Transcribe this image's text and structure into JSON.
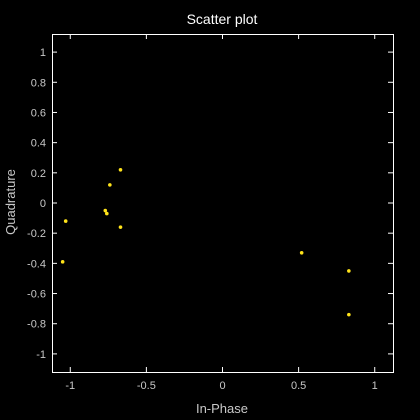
{
  "chart_data": {
    "type": "scatter",
    "title": "Scatter plot",
    "xlabel": "In-Phase",
    "ylabel": "Quadrature",
    "xlim": [
      -1.12,
      1.12
    ],
    "ylim": [
      -1.12,
      1.12
    ],
    "x_ticks": [
      -1,
      -0.5,
      0,
      0.5,
      1
    ],
    "x_tick_labels": [
      "-1",
      "-0.5",
      "0",
      "0.5",
      "1"
    ],
    "y_ticks": [
      1,
      0.8,
      0.6,
      0.4,
      0.2,
      0,
      -0.2,
      -0.4,
      -0.6,
      -0.8,
      -1
    ],
    "y_tick_labels": [
      "1",
      "0.8",
      "0.6",
      "0.4",
      "0.2",
      "0",
      "-0.2",
      "-0.4",
      "-0.6",
      "-0.8",
      "-1"
    ],
    "grid": false,
    "series": [
      {
        "points": [
          {
            "x": -0.67,
            "y": 0.22
          },
          {
            "x": -0.74,
            "y": 0.12
          },
          {
            "x": -1.03,
            "y": -0.12
          },
          {
            "x": -0.77,
            "y": -0.05
          },
          {
            "x": -0.76,
            "y": -0.07
          },
          {
            "x": -0.67,
            "y": -0.16
          },
          {
            "x": -1.05,
            "y": -0.39
          },
          {
            "x": 0.52,
            "y": -0.33
          },
          {
            "x": 0.83,
            "y": -0.45
          },
          {
            "x": 0.83,
            "y": -0.74
          }
        ]
      }
    ],
    "colors": {
      "background": "#000000",
      "axes": "#ffffff",
      "text": "#c8c8c8",
      "title": "#ffffff",
      "marker": "#ffe31a"
    }
  }
}
